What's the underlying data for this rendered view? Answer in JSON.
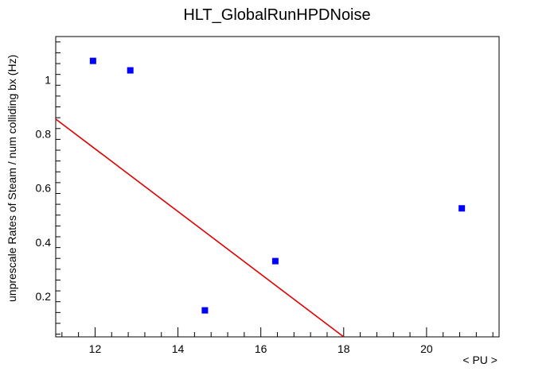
{
  "chart_data": {
    "type": "scatter",
    "title": "HLT_GlobalRunHPDNoise",
    "xlabel": "< PU >",
    "ylabel": "unprescale Rates of Steam / num colliding bx (Hz)",
    "xlim": [
      11.05,
      21.75
    ],
    "ylim": [
      0.05,
      1.16
    ],
    "x_ticks": [
      12,
      14,
      16,
      18,
      20
    ],
    "y_ticks": [
      0.2,
      0.4,
      0.6,
      0.8,
      1.0
    ],
    "x_tick_labels": [
      "12",
      "14",
      "16",
      "18",
      "20"
    ],
    "y_tick_labels": [
      "0.2",
      "0.4",
      "0.6",
      "0.8",
      "1"
    ],
    "grid": false,
    "series": [
      {
        "type": "scatter",
        "color": "#0000ff",
        "marker": "square",
        "points": [
          {
            "x": 11.95,
            "y": 1.07
          },
          {
            "x": 12.85,
            "y": 1.035
          },
          {
            "x": 14.65,
            "y": 0.148
          },
          {
            "x": 16.35,
            "y": 0.33
          },
          {
            "x": 20.85,
            "y": 0.525
          }
        ]
      },
      {
        "type": "line",
        "color": "#e00000",
        "points": [
          {
            "x": 11.05,
            "y": 0.855
          },
          {
            "x": 18.0,
            "y": 0.05
          }
        ]
      }
    ]
  }
}
